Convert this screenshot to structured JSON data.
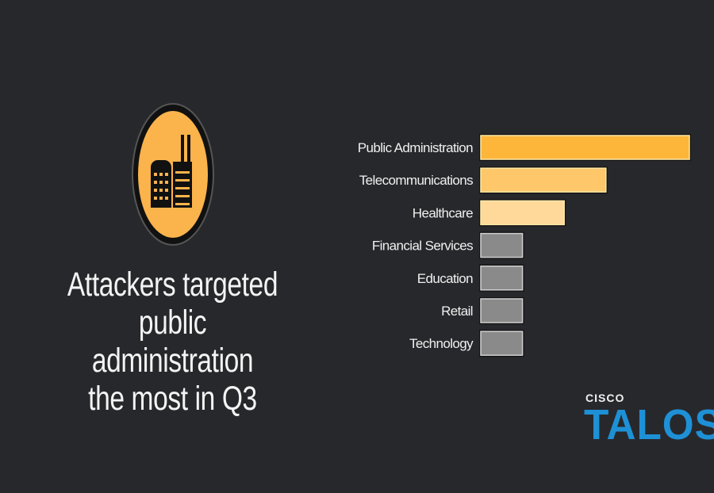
{
  "headline": [
    "Attackers targeted",
    "public administration",
    "the most in Q3"
  ],
  "icon": "building-factory-icon",
  "logo": {
    "brand": "CISCO",
    "product": "TALOS",
    "color": "#1e90d6"
  },
  "colors": {
    "background": "#27282c",
    "top": "#fdb53a",
    "second": "#fdc76a",
    "third": "#fed99a",
    "other": "#8a8a8a"
  },
  "chart_data": {
    "type": "bar",
    "orientation": "horizontal",
    "title": "",
    "xlabel": "",
    "ylabel": "",
    "grid": false,
    "categories": [
      "Public Administration",
      "Telecommunications",
      "Healthcare",
      "Financial Services",
      "Education",
      "Retail",
      "Technology"
    ],
    "values": [
      5,
      3,
      2,
      1,
      1,
      1,
      1
    ],
    "bar_colors": [
      "#fdb53a",
      "#fdc76a",
      "#fed99a",
      "#8a8a8a",
      "#8a8a8a",
      "#8a8a8a",
      "#8a8a8a"
    ]
  }
}
